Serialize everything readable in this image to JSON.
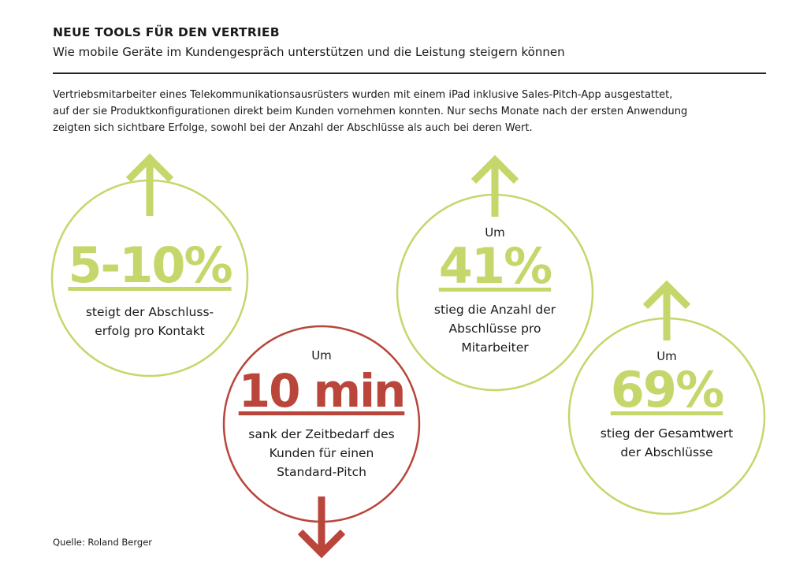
{
  "header": {
    "title": "NEUE TOOLS FÜR DEN VERTRIEB",
    "subtitle": "Wie mobile Geräte im Kundengespräch unterstützen und die Leistung steigern können"
  },
  "intro_lines": [
    "Vertriebsmitarbeiter eines Telekommunikationsausrüsters wurden mit einem iPad inklusive Sales-Pitch-App ausgestattet,",
    "auf der sie Produktkonfigurationen direkt beim Kunden vornehmen konnten. Nur sechs Monate nach der ersten Anwendung",
    "zeigten sich sichtbare Erfolge, sowohl bei der Anzahl der Abschlüsse als auch bei deren Wert."
  ],
  "stats": [
    {
      "prefix": "",
      "value": "5-10%",
      "description_lines": [
        "steigt der Abschluss-",
        "erfolg pro Kontakt"
      ],
      "direction": "up",
      "color": "#c5d76b"
    },
    {
      "prefix": "Um",
      "value": "10 min",
      "description_lines": [
        "sank der Zeitbedarf des",
        "Kunden für einen",
        "Standard-Pitch"
      ],
      "direction": "down",
      "color": "#b9453b"
    },
    {
      "prefix": "Um",
      "value": "41%",
      "description_lines": [
        "stieg die Anzahl der",
        "Abschlüsse pro",
        "Mitarbeiter"
      ],
      "direction": "up",
      "color": "#c5d76b"
    },
    {
      "prefix": "Um",
      "value": "69%",
      "description_lines": [
        "stieg der Gesamtwert",
        "der Abschlüsse"
      ],
      "direction": "up",
      "color": "#c5d76b"
    }
  ],
  "source": "Quelle: Roland Berger"
}
